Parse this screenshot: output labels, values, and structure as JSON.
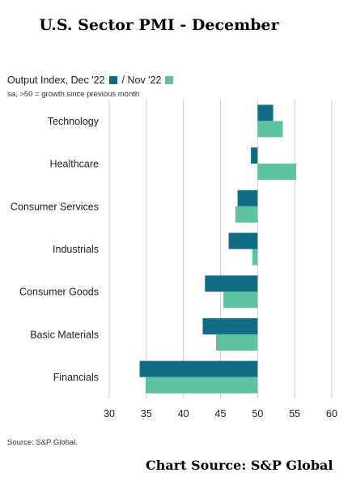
{
  "title": "U.S. Sector PMI - December",
  "legend": {
    "dec_label": "Output Index, Dec '22",
    "nov_label": "/ Nov '22",
    "note": "sa, >50 = growth since previous month"
  },
  "source": "Source: S&P Global.",
  "credit": "Chart Source: S&P Global",
  "colors": {
    "dec": "#116d83",
    "nov": "#5cc2a2",
    "grid": "#cfcfcf"
  },
  "chart_data": {
    "type": "bar",
    "orientation": "horizontal",
    "title": "U.S. Sector PMI - December",
    "categories": [
      "Technology",
      "Healthcare",
      "Consumer Services",
      "Industrials",
      "Consumer Goods",
      "Basic Materials",
      "Financials"
    ],
    "baseline": 50,
    "series": [
      {
        "name": "Output Index, Dec '22",
        "color": "#116d83",
        "values": [
          52.1,
          49.1,
          47.3,
          46.1,
          42.9,
          42.6,
          34.1
        ]
      },
      {
        "name": "Nov '22",
        "color": "#5cc2a2",
        "values": [
          53.4,
          55.2,
          47.0,
          49.3,
          45.4,
          44.4,
          34.9
        ]
      }
    ],
    "xlim": [
      30,
      60
    ],
    "xticks": [
      30,
      35,
      40,
      45,
      50,
      55,
      60
    ],
    "grid": true,
    "legend_position": "top-left"
  }
}
